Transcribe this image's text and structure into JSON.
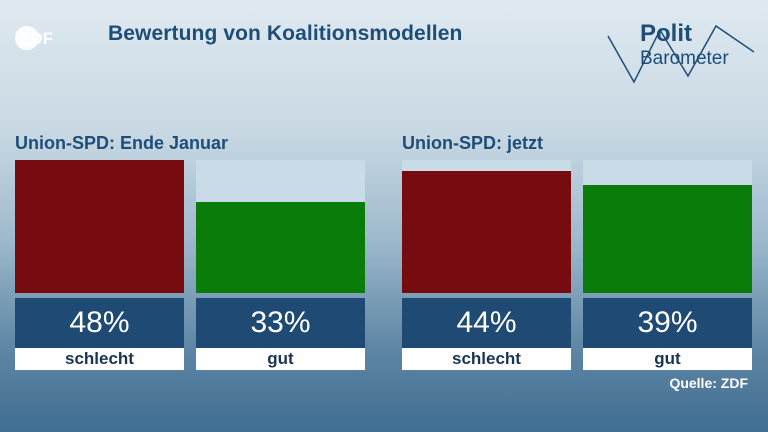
{
  "header": {
    "title": "Bewertung von Koalitionsmodellen",
    "logo_text": "ZDF",
    "brand_line1": "Polit",
    "brand_line2": "Barometer"
  },
  "source": "Quelle: ZDF",
  "colors": {
    "schlecht": "#760c0f",
    "gut": "#0a7c0a",
    "value_box": "#1f4a74",
    "title": "#1e4e78"
  },
  "chart_data": [
    {
      "type": "bar",
      "title": "Union-SPD: Ende Januar",
      "categories": [
        "schlecht",
        "gut"
      ],
      "values": [
        48,
        33
      ],
      "labels": [
        "48%",
        "33%"
      ],
      "ylim": [
        0,
        48
      ]
    },
    {
      "type": "bar",
      "title": "Union-SPD: jetzt",
      "categories": [
        "schlecht",
        "gut"
      ],
      "values": [
        44,
        39
      ],
      "labels": [
        "44%",
        "39%"
      ],
      "ylim": [
        0,
        48
      ]
    }
  ]
}
